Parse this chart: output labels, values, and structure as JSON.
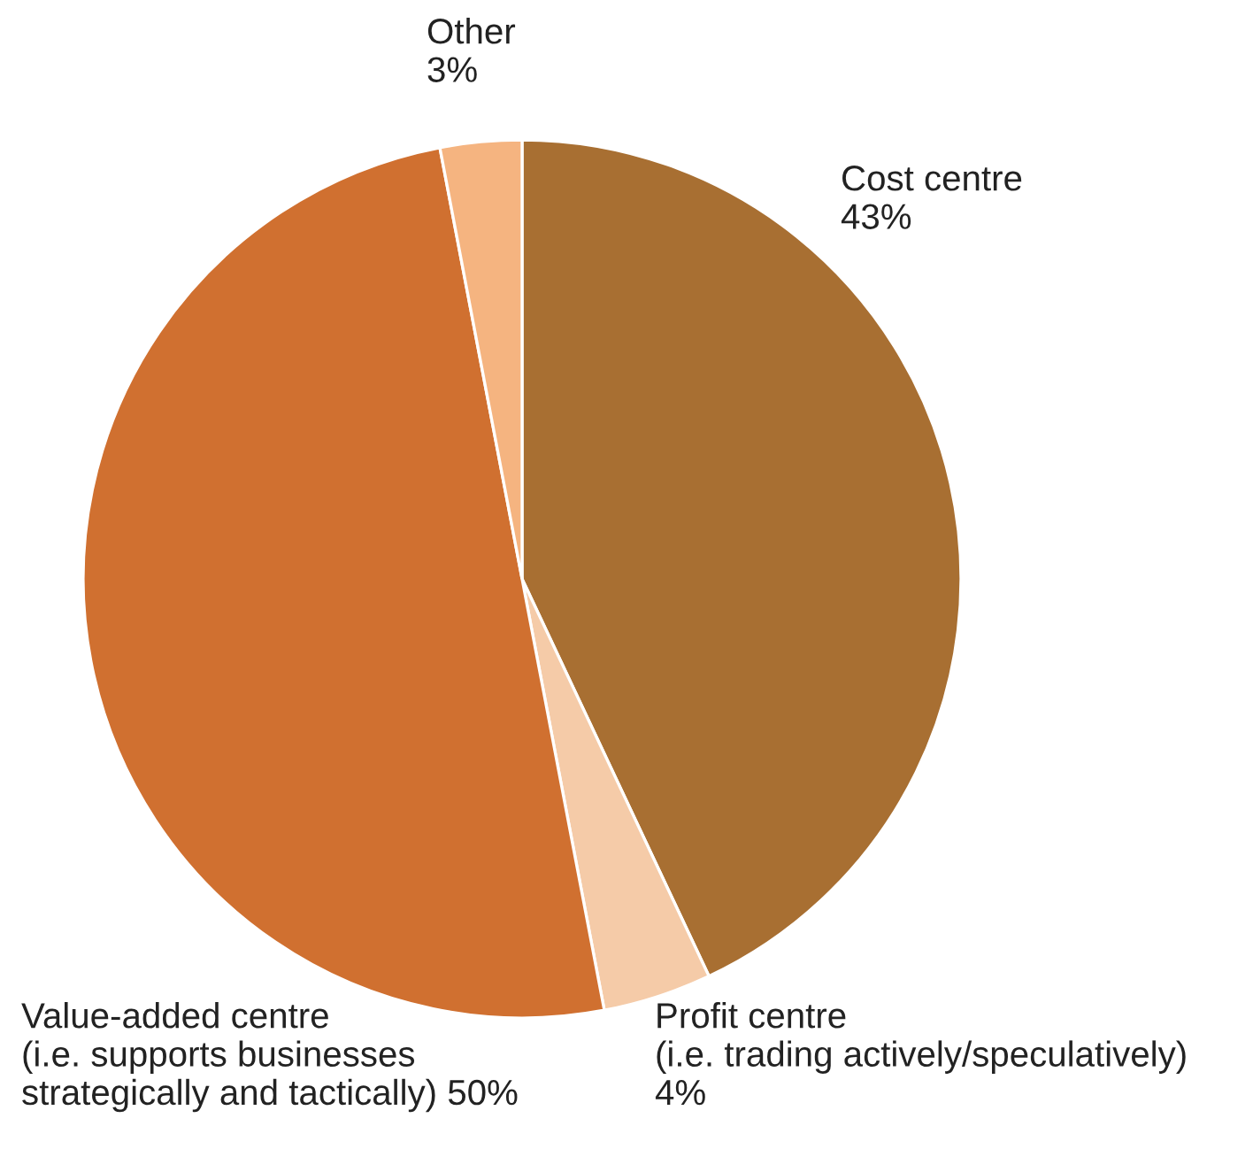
{
  "chart_data": {
    "type": "pie",
    "categories": [
      "Cost centre",
      "Profit centre\n(i.e. trading actively/speculatively)",
      "Value-added centre\n(i.e. supports businesses\nstrategically and tactically)",
      "Other"
    ],
    "values": [
      43,
      4,
      50,
      3
    ],
    "colors": [
      "#a86f32",
      "#f5cba8",
      "#d07030",
      "#f5b480"
    ],
    "value_labels": [
      "43%",
      "4%",
      "50%",
      "3%"
    ]
  }
}
